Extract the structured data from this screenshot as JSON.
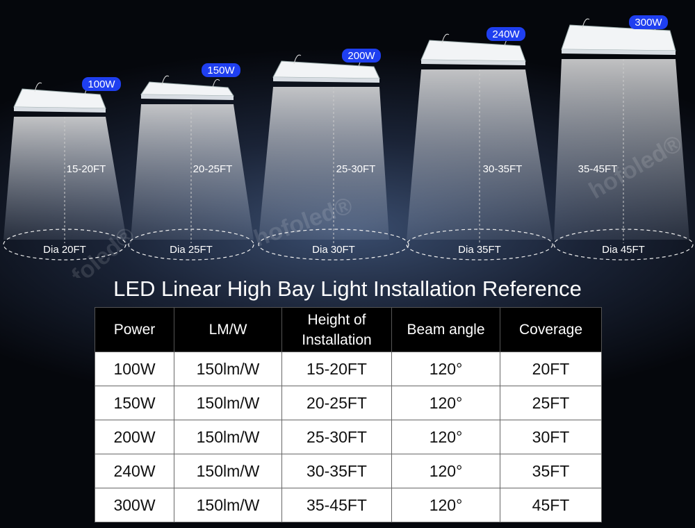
{
  "watermark": "hofoled®",
  "lights": [
    {
      "power": "100W",
      "height": "15-20FT",
      "diameter": "Dia 20FT"
    },
    {
      "power": "150W",
      "height": "20-25FT",
      "diameter": "Dia 25FT"
    },
    {
      "power": "200W",
      "height": "25-30FT",
      "diameter": "Dia 30FT"
    },
    {
      "power": "240W",
      "height": "30-35FT",
      "diameter": "Dia 35FT"
    },
    {
      "power": "300W",
      "height": "35-45FT",
      "diameter": "Dia 45FT"
    }
  ],
  "title": "LED Linear High Bay Light Installation Reference",
  "table": {
    "header": [
      "Power",
      "LM/W",
      "Height of\nInstallation",
      "Beam angle",
      "Coverage"
    ],
    "rows": [
      [
        "100W",
        "150lm/W",
        "15-20FT",
        "120°",
        "20FT"
      ],
      [
        "150W",
        "150lm/W",
        "20-25FT",
        "120°",
        "25FT"
      ],
      [
        "200W",
        "150lm/W",
        "25-30FT",
        "120°",
        "30FT"
      ],
      [
        "240W",
        "150lm/W",
        "30-35FT",
        "120°",
        "35FT"
      ],
      [
        "300W",
        "150lm/W",
        "35-45FT",
        "120°",
        "45FT"
      ]
    ]
  }
}
